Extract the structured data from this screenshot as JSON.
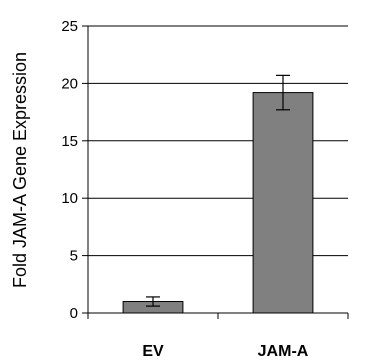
{
  "chart_data": {
    "type": "bar",
    "categories": [
      "EV",
      "JAM-A"
    ],
    "values": [
      1.0,
      19.2
    ],
    "errors": [
      0.4,
      1.5
    ],
    "title": "",
    "xlabel": "",
    "ylabel": "Fold JAM-A Gene Expression",
    "ylim": [
      0,
      25
    ],
    "yticks": [
      0,
      5,
      10,
      15,
      20,
      25
    ],
    "grid": true,
    "bar_color": "#808080"
  }
}
